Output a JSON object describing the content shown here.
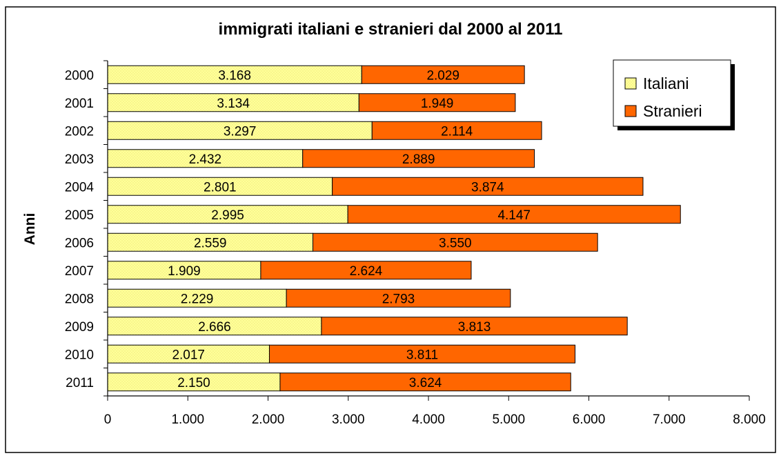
{
  "chart_data": {
    "type": "bar",
    "orientation": "horizontal",
    "stacked": true,
    "title": "immigrati italiani e stranieri dal 2000 al 2011",
    "xlabel": "",
    "ylabel": "Anni",
    "categories": [
      "2000",
      "2001",
      "2002",
      "2003",
      "2004",
      "2005",
      "2006",
      "2007",
      "2008",
      "2009",
      "2010",
      "2011"
    ],
    "series": [
      {
        "name": "Italiani",
        "color": "#ffff99",
        "values": [
          3168,
          3134,
          3297,
          2432,
          2801,
          2995,
          2559,
          1909,
          2229,
          2666,
          2017,
          2150
        ],
        "labels": [
          "3.168",
          "3.134",
          "3.297",
          "2.432",
          "2.801",
          "2.995",
          "2.559",
          "1.909",
          "2.229",
          "2.666",
          "2.017",
          "2.150"
        ]
      },
      {
        "name": "Stranieri",
        "color": "#ff6600",
        "values": [
          2029,
          1949,
          2114,
          2889,
          3874,
          4147,
          3550,
          2624,
          2793,
          3813,
          3811,
          3624
        ],
        "labels": [
          "2.029",
          "1.949",
          "2.114",
          "2.889",
          "3.874",
          "4.147",
          "3.550",
          "2.624",
          "2.793",
          "3.813",
          "3.811",
          "3.624"
        ]
      }
    ],
    "xlim": [
      0,
      8000
    ],
    "xticks": [
      0,
      1000,
      2000,
      3000,
      4000,
      5000,
      6000,
      7000,
      8000
    ],
    "xtick_labels": [
      "0",
      "1.000",
      "2.000",
      "3.000",
      "4.000",
      "5.000",
      "6.000",
      "7.000",
      "8.000"
    ],
    "grid": false,
    "legend_position": "top-right"
  }
}
